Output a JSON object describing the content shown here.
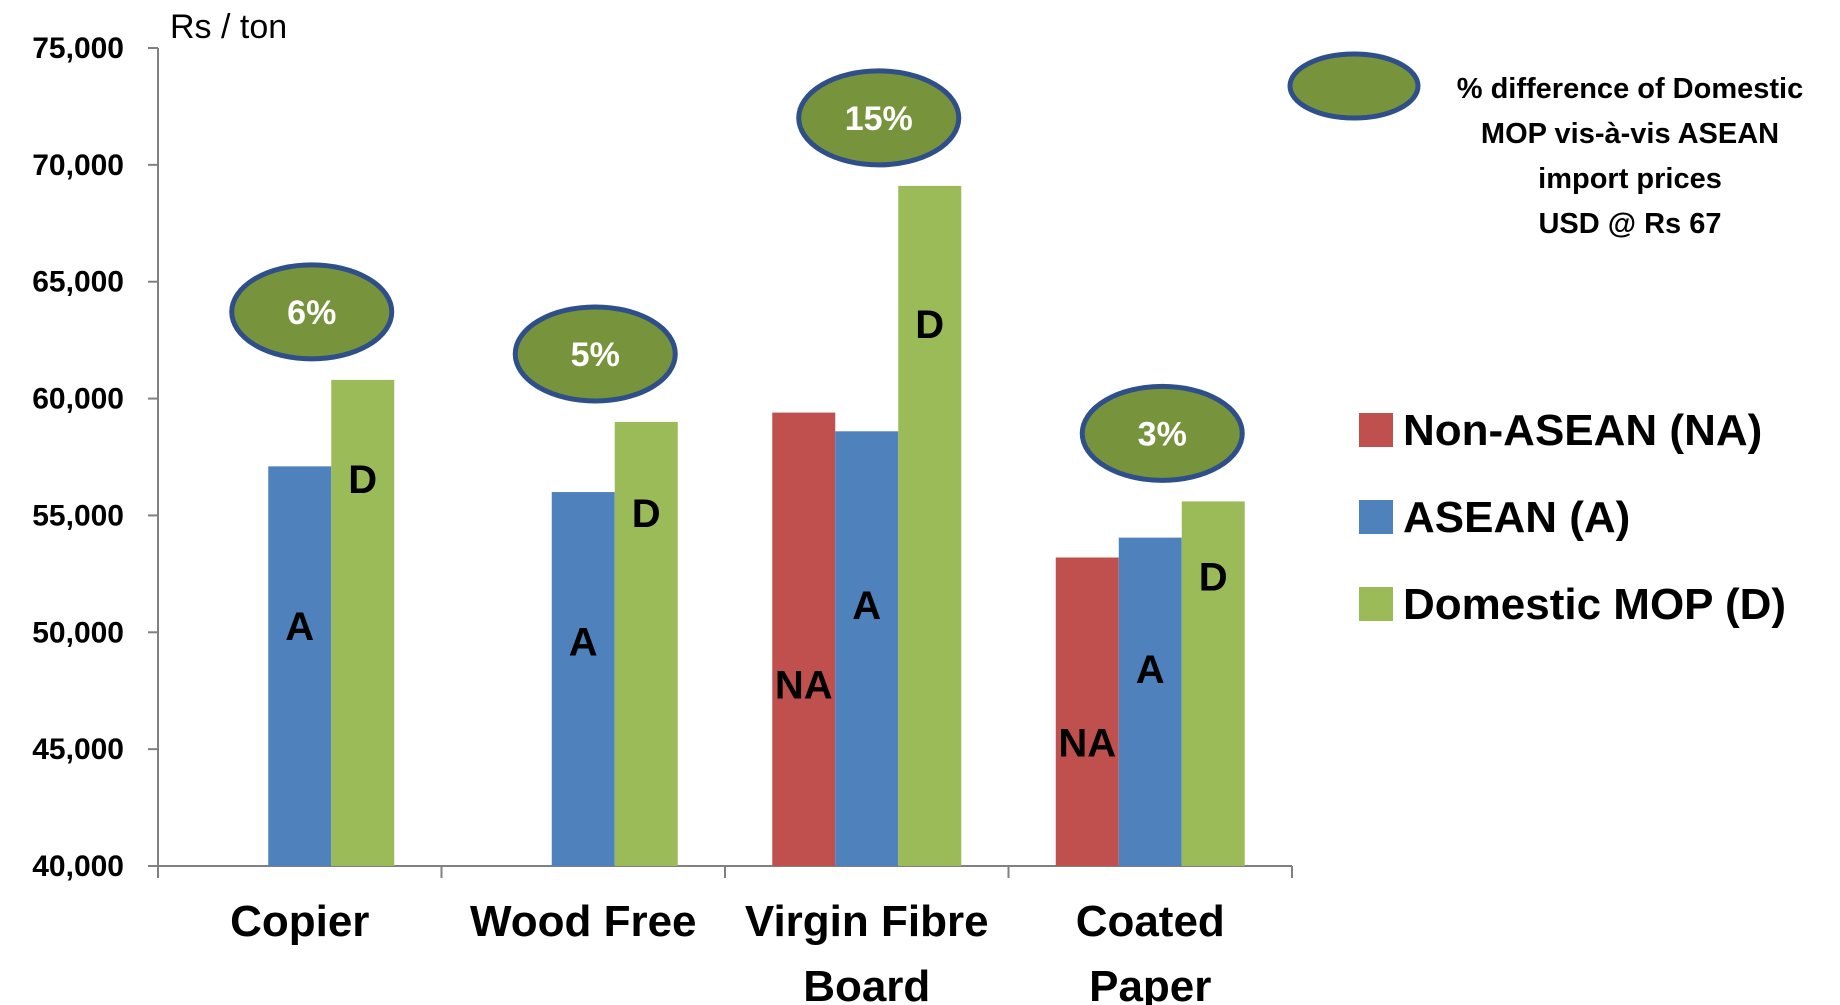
{
  "chart_data": {
    "type": "bar",
    "ylabel": "Rs / ton",
    "ylim": [
      40000,
      75000
    ],
    "yticks": [
      40000,
      45000,
      50000,
      55000,
      60000,
      65000,
      70000,
      75000
    ],
    "ytick_labels": [
      "40,000",
      "45,000",
      "50,000",
      "55,000",
      "60,000",
      "65,000",
      "70,000",
      "75,000"
    ],
    "categories": [
      [
        "Copier"
      ],
      [
        "Wood Free"
      ],
      [
        "Virgin Fibre",
        "Board"
      ],
      [
        "Coated",
        "Paper"
      ]
    ],
    "series": [
      {
        "name": "Non-ASEAN (NA)",
        "code": "NA",
        "color": "#c0504d",
        "values": [
          null,
          null,
          59400,
          53200
        ]
      },
      {
        "name": "ASEAN (A)",
        "code": "A",
        "color": "#4f81bd",
        "values": [
          57100,
          56000,
          58600,
          54050
        ]
      },
      {
        "name": "Domestic MOP (D)",
        "code": "D",
        "color": "#9bbb59",
        "values": [
          60800,
          59000,
          69100,
          55600
        ]
      }
    ],
    "pct_difference": [
      "6%",
      "5%",
      "15%",
      "3%"
    ],
    "pct_note": [
      "% difference of Domestic",
      "MOP vis-à-vis ASEAN",
      "import prices",
      "USD @ Rs 67"
    ],
    "grid": false,
    "legend_position": "right"
  },
  "colors": {
    "ellipse_fill": "#77933c",
    "ellipse_stroke": "#2e4f8a",
    "axis": "#808080"
  }
}
